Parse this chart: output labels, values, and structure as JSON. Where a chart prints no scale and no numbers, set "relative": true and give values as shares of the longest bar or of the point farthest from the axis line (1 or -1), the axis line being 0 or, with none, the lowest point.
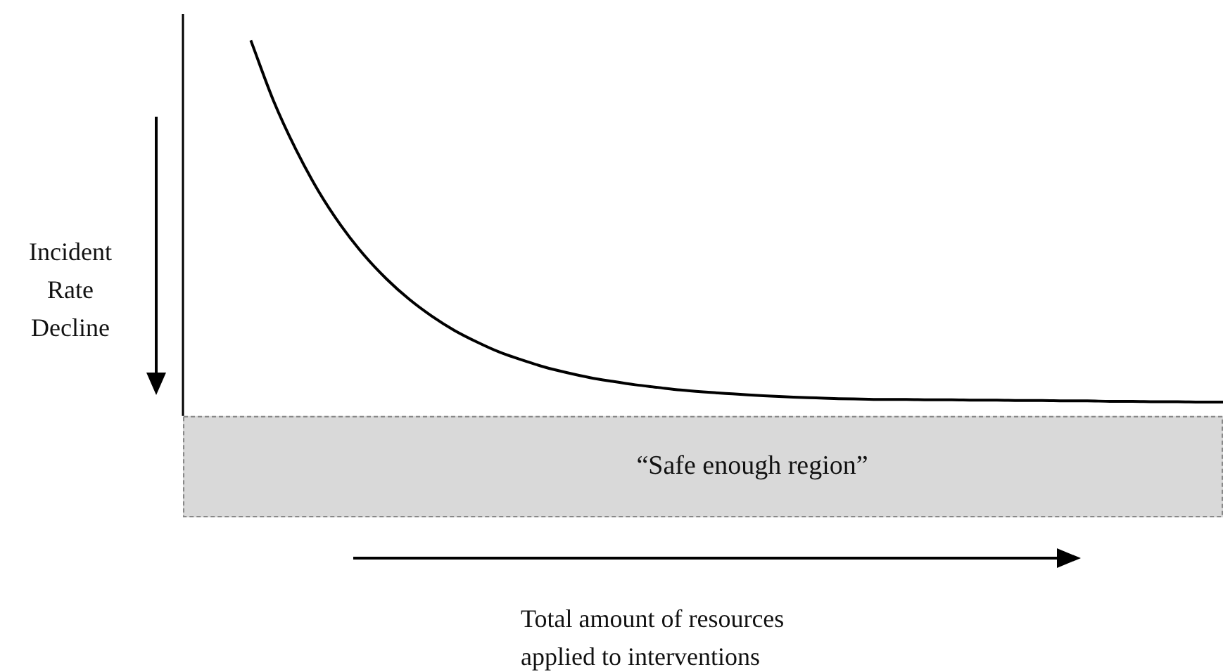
{
  "chart_data": {
    "type": "line",
    "relative": true,
    "annotations": [
      "Total amount of resources\napplied to interventions"
    ],
    "ylabel": "Incident\nRate\nDecline",
    "categories": [
      null,
      null,
      null,
      null,
      null,
      null,
      null,
      null,
      null,
      null,
      null,
      null,
      null,
      null,
      null,
      null,
      null,
      null,
      null,
      null,
      null,
      null,
      null,
      null,
      null,
      null,
      null,
      null,
      null,
      null,
      null,
      null,
      null,
      null,
      null,
      null,
      null,
      null,
      null,
      null,
      null,
      null,
      null,
      null,
      null,
      null,
      null
    ],
    "series": [
      {
        "color": "#000000",
        "values": [
          null,
          null,
          null,
          1.0,
          0.84,
          0.709,
          0.598,
          0.506,
          0.429,
          0.365,
          0.311,
          0.266,
          0.228,
          0.197,
          0.17,
          0.149,
          0.13,
          0.115,
          0.102,
          0.092,
          0.083,
          0.076,
          0.069,
          0.064,
          0.06,
          0.056,
          0.053,
          0.05,
          0.048,
          0.046,
          0.045,
          0.044,
          0.044,
          0.043,
          0.043,
          0.042,
          0.042,
          0.041,
          0.041,
          0.04,
          0.04,
          0.039,
          0.039,
          0.038,
          0.038,
          0.037,
          0.037
        ]
      }
    ],
    "bands": [
      {
        "axis": "y",
        "from": -0.27,
        "to": 0,
        "label": "“Safe enough region”",
        "color": "#d9d9d9"
      }
    ],
    "legend": false,
    "tick_labels": false
  }
}
